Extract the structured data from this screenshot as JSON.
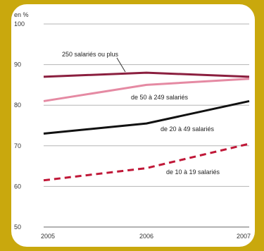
{
  "chart_data": {
    "type": "line",
    "title": "",
    "xlabel": "",
    "ylabel": "en %",
    "x": [
      "2005",
      "2006",
      "2007"
    ],
    "ylim": [
      50,
      100
    ],
    "yticks": [
      50,
      60,
      70,
      80,
      90,
      100
    ],
    "grid": true,
    "series": [
      {
        "name": "250 salariés ou plus",
        "values": [
          87,
          88,
          87
        ],
        "color": "#8b1f3f",
        "dash": false
      },
      {
        "name": "de 50 à 249 salariés",
        "values": [
          81,
          85,
          86.5
        ],
        "color": "#e58aa3",
        "dash": false
      },
      {
        "name": "de 20 à 49 salariés",
        "values": [
          73,
          75.5,
          81
        ],
        "color": "#111111",
        "dash": false
      },
      {
        "name": "de 10 à 19 salariés",
        "values": [
          61.5,
          64.5,
          70.5
        ],
        "color": "#c01838",
        "dash": true
      }
    ]
  }
}
